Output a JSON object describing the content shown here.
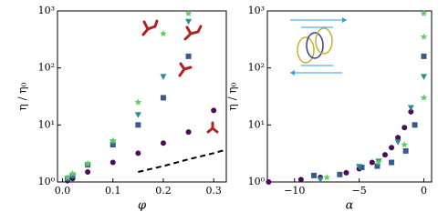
{
  "chart_data": [
    {
      "type": "scatter",
      "xlabel": "φ",
      "ylabel": "η / η₀",
      "log_y": true,
      "xlim": [
        -0.01,
        0.325
      ],
      "ylim": [
        1,
        1000
      ],
      "xticks": [
        {
          "value": 0,
          "label": "0.0"
        },
        {
          "value": 0.1,
          "label": "0.1"
        },
        {
          "value": 0.2,
          "label": "0.2"
        },
        {
          "value": 0.3,
          "label": "0.3"
        }
      ],
      "yticks": [
        {
          "value": 1,
          "label": "10⁰"
        },
        {
          "value": 10,
          "label": "10¹"
        },
        {
          "value": 100,
          "label": "10²"
        },
        {
          "value": 1000,
          "label": "10³"
        }
      ],
      "series": [
        {
          "color": "#4b0c5a",
          "marker": "circle",
          "x": [
            0.01,
            0.02,
            0.05,
            0.1,
            0.15,
            0.2,
            0.25,
            0.3
          ],
          "values": [
            1.05,
            1.15,
            1.5,
            2.2,
            3.2,
            4.8,
            7.5,
            18
          ]
        },
        {
          "color": "#3b5a8c",
          "marker": "square",
          "x": [
            0.01,
            0.02,
            0.05,
            0.1,
            0.15,
            0.2,
            0.25
          ],
          "values": [
            1.15,
            1.3,
            2.0,
            4.5,
            10,
            30,
            160
          ]
        },
        {
          "color": "#2a8c8c",
          "marker": "triangle-down",
          "x": [
            0.01,
            0.02,
            0.05,
            0.1,
            0.15,
            0.2,
            0.25
          ],
          "values": [
            1.15,
            1.3,
            2.0,
            5,
            15,
            70,
            650
          ]
        },
        {
          "color": "#5ccf5c",
          "marker": "star",
          "x": [
            0.01,
            0.02,
            0.05,
            0.1,
            0.15,
            0.2,
            0.25
          ],
          "values": [
            1.2,
            1.4,
            2.1,
            5.3,
            25,
            400,
            900
          ]
        },
        {
          "color": "#000000",
          "marker": "dashed",
          "x": [
            0.15,
            0.2,
            0.25,
            0.3,
            0.325
          ],
          "values": [
            1.5,
            1.9,
            2.5,
            3.2,
            3.7
          ]
        }
      ]
    },
    {
      "type": "scatter",
      "xlabel": "α",
      "ylabel": "η / η₀",
      "log_y": true,
      "xlim": [
        -12.1,
        0.6
      ],
      "ylim": [
        1,
        1000
      ],
      "xticks": [
        {
          "value": -10,
          "label": "−10"
        },
        {
          "value": -5,
          "label": "−5"
        },
        0
      ],
      "yticks": [
        {
          "value": 1,
          "label": "10⁰"
        },
        {
          "value": 10,
          "label": "10¹"
        },
        {
          "value": 100,
          "label": "10²"
        },
        {
          "value": 1000,
          "label": "10³"
        }
      ],
      "series": [
        {
          "color": "#4b0c5a",
          "marker": "circle",
          "x": [
            -12,
            -9.5,
            -8,
            -6,
            -5,
            -4,
            -3,
            -2.5,
            -2,
            -1.5,
            -1
          ],
          "values": [
            1.0,
            1.1,
            1.2,
            1.45,
            1.7,
            2.2,
            3,
            4,
            6,
            9,
            17
          ]
        },
        {
          "color": "#3b5a8c",
          "marker": "square",
          "x": [
            -8.5,
            -6.5,
            -4.8,
            -3.6,
            -2.5,
            -1.4,
            -0.7,
            0
          ],
          "values": [
            1.3,
            1.35,
            1.8,
            1.9,
            2.2,
            3.5,
            10,
            160
          ]
        },
        {
          "color": "#2a8c8c",
          "marker": "triangle-down",
          "x": [
            -8,
            -5,
            -3.5,
            -2,
            -1,
            0
          ],
          "values": [
            1.1,
            1.85,
            2.3,
            5,
            20,
            70
          ]
        },
        {
          "color": "#5ccf5c",
          "marker": "star",
          "x": [
            -7.5,
            -3.5,
            -1.5,
            0,
            0,
            0
          ],
          "values": [
            1.2,
            2.2,
            4.5,
            30,
            350,
            900
          ]
        }
      ]
    }
  ]
}
